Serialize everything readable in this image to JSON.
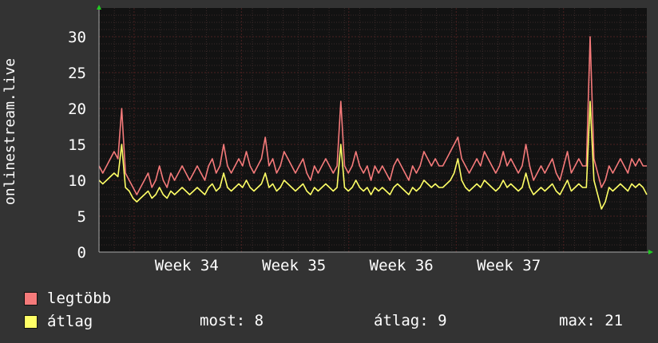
{
  "colors": {
    "background": "#333333",
    "plot_bg": "#121212",
    "grid": "#4a2020",
    "axis_arrow": "#22cc22",
    "text": "#ffffff"
  },
  "chart_data": {
    "type": "line",
    "ylabel": "onlinestream.live",
    "ylim": [
      0,
      34
    ],
    "yticks": [
      0,
      5,
      10,
      15,
      20,
      25,
      30
    ],
    "xlim": [
      0,
      125
    ],
    "xticks": [
      {
        "label": "Week 34",
        "x": 20
      },
      {
        "label": "Week 35",
        "x": 44.5
      },
      {
        "label": "Week 36",
        "x": 69
      },
      {
        "label": "Week 37",
        "x": 93.5
      }
    ],
    "grid": true,
    "series": [
      {
        "name": "legtöbb",
        "color": "#f57a7a",
        "values": [
          12,
          11,
          12,
          13,
          14,
          13,
          20,
          11,
          10,
          9,
          8,
          9,
          10,
          11,
          9,
          10,
          12,
          10,
          9,
          11,
          10,
          11,
          12,
          11,
          10,
          11,
          12,
          11,
          10,
          12,
          13,
          11,
          12,
          15,
          12,
          11,
          12,
          13,
          12,
          14,
          12,
          11,
          12,
          13,
          16,
          12,
          13,
          11,
          12,
          14,
          13,
          12,
          11,
          12,
          13,
          11,
          10,
          12,
          11,
          12,
          13,
          12,
          11,
          12,
          21,
          12,
          11,
          12,
          14,
          12,
          11,
          12,
          10,
          12,
          11,
          12,
          11,
          10,
          12,
          13,
          12,
          11,
          10,
          12,
          11,
          12,
          14,
          13,
          12,
          13,
          12,
          12,
          13,
          14,
          15,
          16,
          13,
          12,
          11,
          12,
          13,
          12,
          14,
          13,
          12,
          11,
          12,
          14,
          12,
          13,
          12,
          11,
          12,
          15,
          12,
          10,
          11,
          12,
          11,
          12,
          13,
          11,
          10,
          12,
          14,
          11,
          12,
          13,
          12,
          12,
          30,
          13,
          11,
          9,
          10,
          12,
          11,
          12,
          13,
          12,
          11,
          13,
          12,
          13,
          12,
          12
        ]
      },
      {
        "name": "átlag",
        "color": "#ffff66",
        "values": [
          10,
          9.5,
          10,
          10.5,
          11,
          10.5,
          15,
          9,
          8.5,
          7.5,
          7,
          7.5,
          8,
          8.5,
          7.5,
          8,
          9,
          8,
          7.5,
          8.5,
          8,
          8.5,
          9,
          8.5,
          8,
          8.5,
          9,
          8.5,
          8,
          9,
          9.5,
          8.5,
          9,
          11,
          9,
          8.5,
          9,
          9.5,
          9,
          10,
          9,
          8.5,
          9,
          9.5,
          11,
          9,
          9.5,
          8.5,
          9,
          10,
          9.5,
          9,
          8.5,
          9,
          9.5,
          8.5,
          8,
          9,
          8.5,
          9,
          9.5,
          9,
          8.5,
          9,
          15,
          9,
          8.5,
          9,
          10,
          9,
          8.5,
          9,
          8,
          9,
          8.5,
          9,
          8.5,
          8,
          9,
          9.5,
          9,
          8.5,
          8,
          9,
          8.5,
          9,
          10,
          9.5,
          9,
          9.5,
          9,
          9,
          9.5,
          10,
          11,
          13,
          10,
          9,
          8.5,
          9,
          9.5,
          9,
          10,
          9.5,
          9,
          8.5,
          9,
          10,
          9,
          9.5,
          9,
          8.5,
          9,
          11,
          9,
          8,
          8.5,
          9,
          8.5,
          9,
          9.5,
          8.5,
          8,
          9,
          10,
          8.5,
          9,
          9.5,
          9,
          9,
          21,
          10,
          8,
          6,
          7,
          9,
          8.5,
          9,
          9.5,
          9,
          8.5,
          9.5,
          9,
          9.5,
          9,
          8
        ]
      }
    ]
  },
  "legend": [
    {
      "label": "legtöbb",
      "color": "#f57a7a"
    },
    {
      "label": "átlag",
      "color": "#ffff66"
    }
  ],
  "stats": {
    "most": "most: 8",
    "atlag": "átlag: 9",
    "max": "max: 21"
  }
}
